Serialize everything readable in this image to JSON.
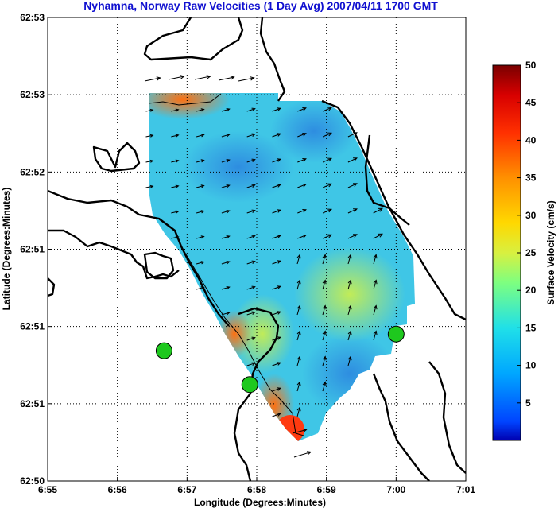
{
  "chart_data": {
    "type": "heatmap",
    "title": "Nyhamna, Norway Raw Velocities (1 Day Avg) 2007/04/11 1700 GMT",
    "xlabel": "Longitude (Degrees:Minutes)",
    "ylabel": "Latitude (Degrees:Minutes)",
    "x_ticks": [
      "6:55",
      "6:56",
      "6:57",
      "6:58",
      "6:59",
      "7:00",
      "7:01"
    ],
    "y_ticks": [
      "62:50",
      "62:51",
      "62:51",
      "62:51",
      "62:52",
      "62:53",
      "62:53"
    ],
    "xlim_minutes": [
      55,
      61
    ],
    "ylim_labels": [
      "62:50",
      "62:53"
    ],
    "grid": true,
    "colorbar": {
      "label": "Surface Velocity (cm/s)",
      "ticks": [
        "5",
        "10",
        "15",
        "20",
        "25",
        "30",
        "35",
        "40",
        "45",
        "50"
      ],
      "range": [
        0,
        50
      ],
      "colormap": "jet"
    },
    "stations": [
      {
        "lon_min": 56.67,
        "lat_frac": 0.281
      },
      {
        "lon_min": 57.9,
        "lat_frac": 0.208
      },
      {
        "lon_min": 60.0,
        "lat_frac": 0.317
      }
    ],
    "colors": {
      "title": "#1010d0",
      "station": "#1ec81e",
      "coastline": "#000000"
    }
  }
}
